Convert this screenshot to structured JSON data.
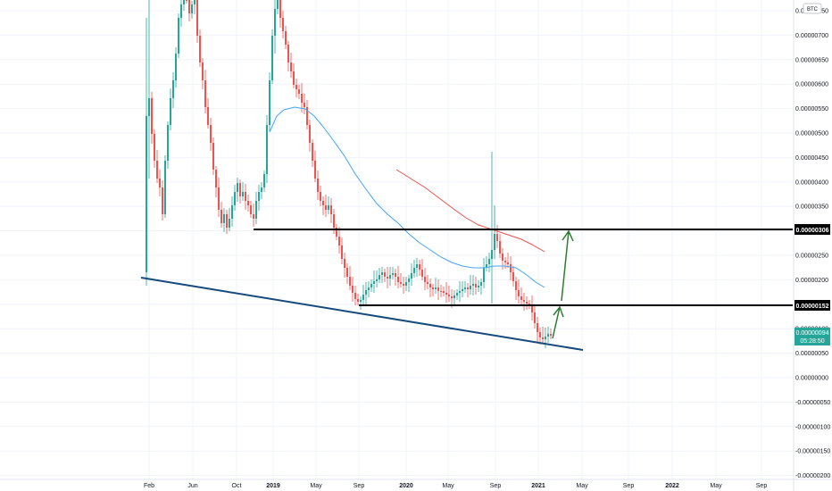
{
  "header": {
    "currency_badge": "BTC"
  },
  "price_tags": {
    "resistance_high": "0.00000306",
    "resistance_low": "0.00000152",
    "last_price": "0.00000094",
    "countdown": "05:28:50"
  },
  "colors": {
    "up": "#26a69a",
    "down": "#ef5350",
    "ma_fast": "#42a5f5",
    "ma_slow": "#ef5350",
    "support_line": "#174a7c",
    "level_line": "#000000",
    "arrow": "#2e7d32",
    "grid": "#f0f3fa",
    "last_price_tag": "#26a69a"
  },
  "chart_data": {
    "type": "candlestick",
    "y_axis": {
      "range": [
        -2.2e-06,
        9e-07
      ],
      "ticks": [
        "-0.00000200",
        "-0.00000150",
        "-0.00000100",
        "-0.00000050",
        "0.00000000",
        "0.00000050",
        "0.00000100",
        "0.00000150",
        "0.00000200",
        "0.00000250",
        "0.00000300",
        "0.00000350",
        "0.00000400",
        "0.00000450",
        "0.00000500",
        "0.00000550",
        "0.00000600",
        "0.00000650",
        "0.00000700",
        "0.00000750"
      ]
    },
    "x_axis": {
      "ticks": [
        {
          "label": "Feb",
          "bold": false
        },
        {
          "label": "Jun",
          "bold": false
        },
        {
          "label": "Oct",
          "bold": false
        },
        {
          "label": "2019",
          "bold": true
        },
        {
          "label": "May",
          "bold": false
        },
        {
          "label": "Sep",
          "bold": false
        },
        {
          "label": "2020",
          "bold": true
        },
        {
          "label": "May",
          "bold": false
        },
        {
          "label": "Sep",
          "bold": false
        },
        {
          "label": "2021",
          "bold": true
        },
        {
          "label": "May",
          "bold": false
        },
        {
          "label": "Sep",
          "bold": false
        },
        {
          "label": "2022",
          "bold": true
        },
        {
          "label": "May",
          "bold": false
        },
        {
          "label": "Sep",
          "bold": false
        }
      ]
    },
    "horizontal_levels": [
      3.06e-06,
      1.52e-06
    ],
    "last_price": 9.4e-07
  }
}
